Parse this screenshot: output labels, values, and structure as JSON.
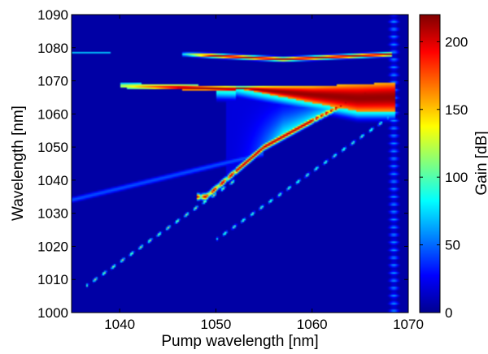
{
  "chart_data": {
    "type": "heatmap",
    "title": "",
    "xlabel": "Pump wavelength [nm]",
    "ylabel": "Wavelength [nm]",
    "colorbar_label": "Gain [dB]",
    "colormap": "jet",
    "xlim": [
      1035,
      1070
    ],
    "ylim": [
      1000,
      1090
    ],
    "clim": [
      0,
      220
    ],
    "grid": false,
    "x_ticks": [
      1040,
      1050,
      1060,
      1070
    ],
    "y_ticks": [
      1000,
      1010,
      1020,
      1030,
      1040,
      1050,
      1060,
      1070,
      1080,
      1090
    ],
    "colorbar_ticks": [
      0,
      50,
      100,
      150,
      200
    ],
    "background_gain_db": 8,
    "features": [
      {
        "name": "upper-band",
        "type": "band",
        "x": [
          1047,
          1057,
          1068
        ],
        "y_center": [
          1078,
          1076.5,
          1078
        ],
        "half_width_nm": 0.6,
        "peak_gain_db": 210
      },
      {
        "name": "faint-upper-line",
        "type": "band",
        "x": [
          1035,
          1039
        ],
        "y_center": [
          1078.5,
          1078.5
        ],
        "half_width_nm": 0.3,
        "peak_gain_db": 70
      },
      {
        "name": "main-band",
        "type": "band",
        "x": [
          1040,
          1052,
          1060,
          1068
        ],
        "y_center": [
          1069,
          1068,
          1068,
          1069
        ],
        "half_width_nm": 0.5,
        "peak_gain_db": 200
      },
      {
        "name": "wedge-region",
        "type": "region",
        "x_range": [
          1052,
          1068
        ],
        "y_range": [
          1061,
          1068
        ],
        "peak_gain_db": 215
      },
      {
        "name": "upper-ridge",
        "type": "ridge",
        "x": [
          1049,
          1055,
          1060,
          1066
        ],
        "y": [
          1035,
          1050,
          1058,
          1067
        ],
        "peak_gain_db": 210,
        "dotted_from_x": 1060
      },
      {
        "name": "left-diagonal-dots",
        "type": "dots",
        "x": [
          1036.5,
          1052
        ],
        "y": [
          1008,
          1040
        ],
        "peak_gain_db": 120
      },
      {
        "name": "right-diagonal-dots",
        "type": "dots",
        "x": [
          1050,
          1068
        ],
        "y": [
          1022,
          1059
        ],
        "peak_gain_db": 110
      },
      {
        "name": "faint-diagonal",
        "type": "line",
        "x": [
          1035,
          1055
        ],
        "y": [
          1034,
          1048
        ],
        "peak_gain_db": 45
      },
      {
        "name": "edge-spots",
        "type": "dots",
        "x": [
          1068.5,
          1068.5
        ],
        "y": [
          1002,
          1088
        ],
        "peak_gain_db": 60
      }
    ]
  }
}
